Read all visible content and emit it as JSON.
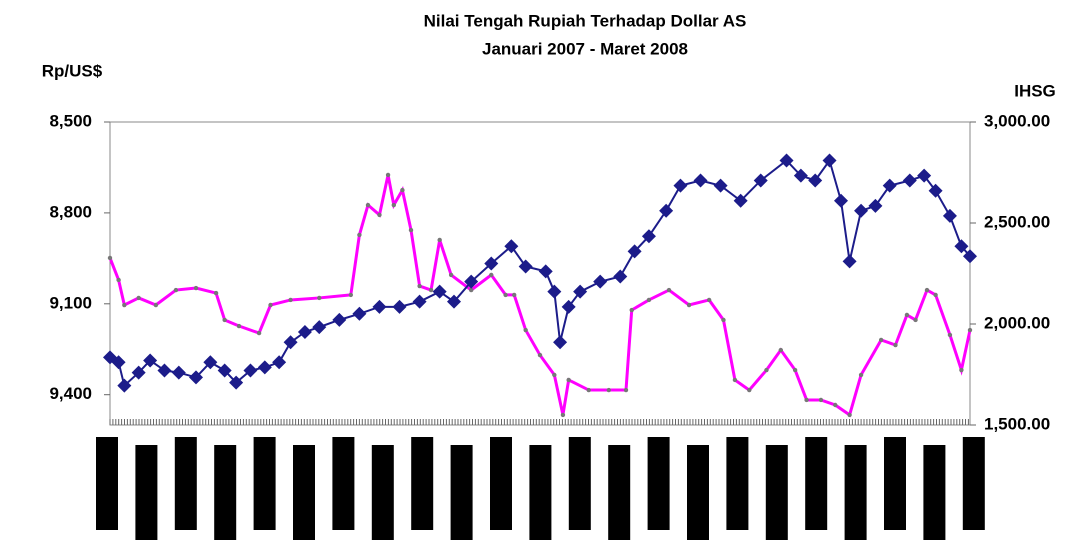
{
  "chart_data": {
    "type": "line",
    "title": "Nilai Tengah Rupiah Terhadap Dollar AS",
    "subtitle": "Januari 2007 - Maret 2008",
    "y_label": "Rp/US$",
    "y2_label": "IHSG",
    "xlim": [
      0,
      300
    ],
    "ylim": [
      9500,
      8500
    ],
    "yticks": [
      {
        "value": 8500,
        "label": "8,500"
      },
      {
        "value": 8800,
        "label": "8,800"
      },
      {
        "value": 9100,
        "label": "9,100"
      },
      {
        "value": 9400,
        "label": "9,400"
      }
    ],
    "y2lim": [
      1500,
      3000
    ],
    "y2ticks": [
      {
        "value": 3000,
        "label": "3,000.00"
      },
      {
        "value": 2500,
        "label": "2,500.00"
      },
      {
        "value": 2000,
        "label": "2,000.00"
      },
      {
        "value": 1500,
        "label": "1,500.00"
      }
    ],
    "series": [
      {
        "color": "#1c1c8a",
        "marker": "diamond",
        "x": [
          0,
          3,
          5,
          10,
          14,
          19,
          24,
          30,
          35,
          40,
          44,
          49,
          54,
          59,
          63,
          68,
          73,
          80,
          87,
          94,
          101,
          108,
          115,
          120,
          126,
          133,
          140,
          145,
          152,
          155,
          157,
          160,
          164,
          171,
          178,
          183,
          188,
          194,
          199,
          206,
          213,
          220,
          227,
          236,
          241,
          246,
          251,
          255,
          258,
          262,
          267,
          272,
          279,
          284,
          288,
          293,
          297,
          300
        ],
        "values": [
          9277,
          9293,
          9370,
          9327,
          9287,
          9320,
          9327,
          9343,
          9293,
          9320,
          9360,
          9320,
          9310,
          9293,
          9227,
          9193,
          9177,
          9153,
          9133,
          9110,
          9110,
          9093,
          9060,
          9093,
          9027,
          8967,
          8910,
          8977,
          8993,
          9060,
          9227,
          9110,
          9060,
          9027,
          9010,
          8927,
          8877,
          8793,
          8710,
          8693,
          8710,
          8760,
          8693,
          8627,
          8677,
          8693,
          8627,
          8760,
          8960,
          8793,
          8777,
          8710,
          8693,
          8677,
          8727,
          8810,
          8910,
          8943
        ]
      },
      {
        "color": "#ff00ff",
        "marker": "dot",
        "axis": "y2",
        "x": [
          0,
          3,
          5,
          10,
          16,
          23,
          30,
          37,
          40,
          45,
          52,
          56,
          63,
          73,
          84,
          87,
          90,
          94,
          97,
          99,
          102,
          105,
          108,
          112,
          115,
          119,
          126,
          133,
          138,
          141,
          145,
          150,
          155,
          158,
          160,
          167,
          174,
          180,
          182,
          188,
          195,
          202,
          209,
          214,
          218,
          223,
          229,
          234,
          239,
          243,
          248,
          253,
          258,
          262,
          269,
          274,
          278,
          281,
          285,
          288,
          293,
          297,
          300
        ],
        "values": [
          2327,
          2218,
          2094,
          2129,
          2094,
          2168,
          2178,
          2153,
          2020,
          1990,
          1955,
          2094,
          2119,
          2129,
          2144,
          2441,
          2589,
          2540,
          2738,
          2589,
          2663,
          2465,
          2188,
          2168,
          2416,
          2243,
          2168,
          2243,
          2144,
          2144,
          1970,
          1846,
          1748,
          1550,
          1723,
          1673,
          1673,
          1673,
          2069,
          2119,
          2168,
          2094,
          2119,
          2020,
          1723,
          1673,
          1772,
          1871,
          1772,
          1624,
          1624,
          1599,
          1550,
          1748,
          1921,
          1896,
          2045,
          2020,
          2168,
          2144,
          1946,
          1772,
          1970
        ]
      }
    ]
  }
}
